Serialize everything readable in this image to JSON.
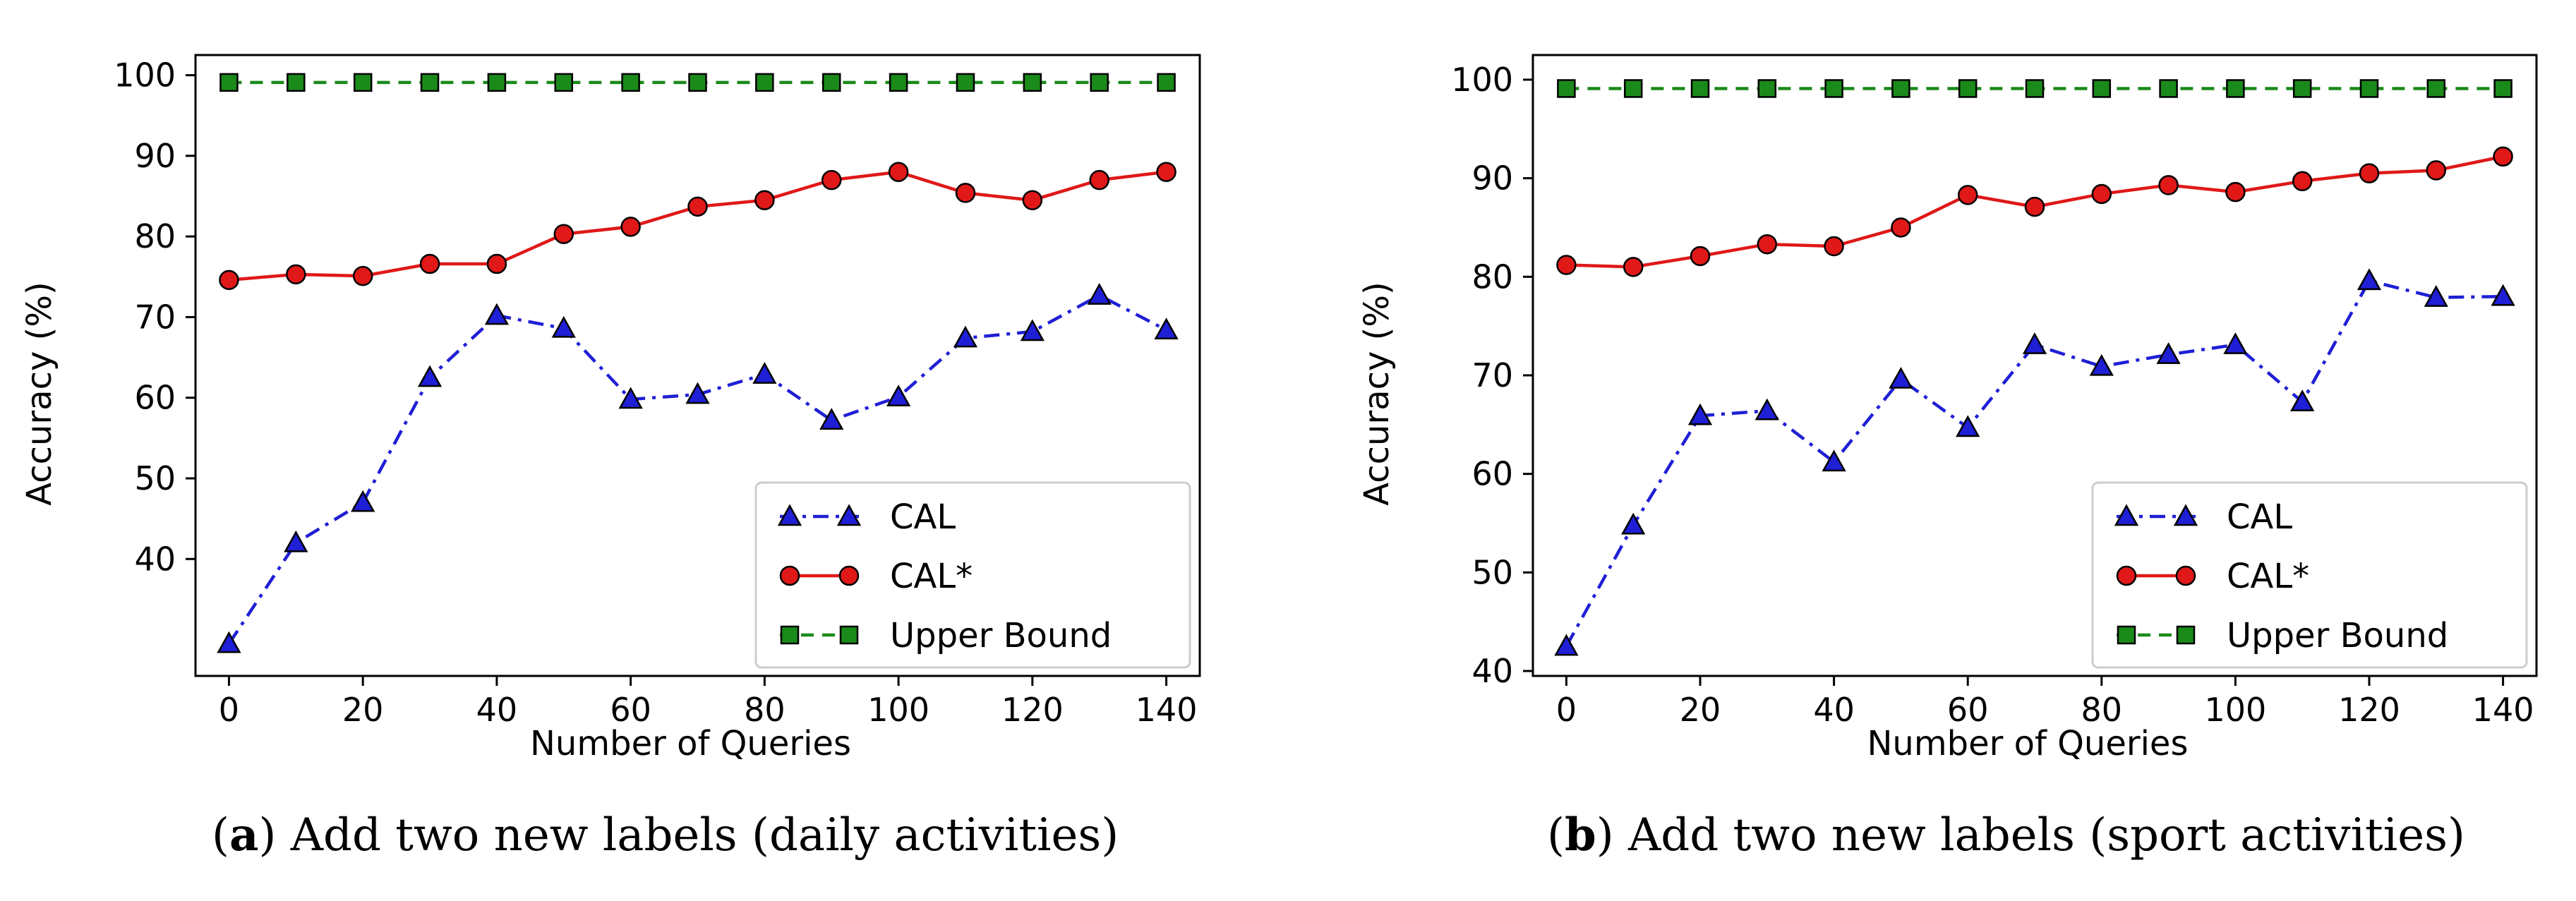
{
  "chart_data": [
    {
      "type": "line",
      "caption_letter": "a",
      "caption_text": "Add two new labels (daily activities)",
      "xlabel": "Number of Queries",
      "ylabel": "Accuracy (%)",
      "xlim": [
        -5,
        145
      ],
      "ylim": [
        25.5,
        102.5
      ],
      "xticks": [
        0,
        20,
        40,
        60,
        80,
        100,
        120,
        140
      ],
      "yticks": [
        40,
        50,
        60,
        70,
        80,
        90,
        100
      ],
      "x": [
        0,
        10,
        20,
        30,
        40,
        50,
        60,
        70,
        80,
        90,
        100,
        110,
        120,
        130,
        140
      ],
      "series": [
        {
          "name": "CAL",
          "color": "#1f1fd6",
          "marker": "triangle",
          "style": "dashdot",
          "values": [
            29.5,
            42,
            47,
            62.5,
            70.2,
            68.6,
            59.8,
            60.4,
            62.9,
            57.2,
            60.1,
            67.4,
            68.2,
            72.7,
            68.4
          ]
        },
        {
          "name": "CAL*",
          "color": "#e01818",
          "marker": "circle",
          "style": "solid",
          "values": [
            74.6,
            75.3,
            75.1,
            76.6,
            76.6,
            80.3,
            81.2,
            83.7,
            84.5,
            87.0,
            88.0,
            85.4,
            84.5,
            87.0,
            88.0
          ]
        },
        {
          "name": "Upper Bound",
          "color": "#1a8a1a",
          "marker": "square",
          "style": "dashed",
          "values": [
            99.1,
            99.1,
            99.1,
            99.1,
            99.1,
            99.1,
            99.1,
            99.1,
            99.1,
            99.1,
            99.1,
            99.1,
            99.1,
            99.1,
            99.1
          ]
        }
      ],
      "legend": "lower right"
    },
    {
      "type": "line",
      "caption_letter": "b",
      "caption_text": "Add two new labels (sport activities)",
      "xlabel": "Number of Queries",
      "ylabel": "Accuracy (%)",
      "xlim": [
        -5,
        145
      ],
      "ylim": [
        39.5,
        102.5
      ],
      "xticks": [
        0,
        20,
        40,
        60,
        80,
        100,
        120,
        140
      ],
      "yticks": [
        40,
        50,
        60,
        70,
        80,
        90,
        100
      ],
      "x": [
        0,
        10,
        20,
        30,
        40,
        50,
        60,
        70,
        80,
        90,
        100,
        110,
        120,
        130,
        140
      ],
      "series": [
        {
          "name": "CAL",
          "color": "#1f1fd6",
          "marker": "triangle",
          "style": "dashdot",
          "values": [
            42.5,
            54.8,
            65.9,
            66.4,
            61.2,
            69.6,
            64.7,
            73.1,
            70.9,
            72.1,
            73.1,
            67.3,
            79.6,
            77.9,
            78.0
          ]
        },
        {
          "name": "CAL*",
          "color": "#e01818",
          "marker": "circle",
          "style": "solid",
          "values": [
            81.2,
            81.0,
            82.1,
            83.3,
            83.1,
            85.0,
            88.3,
            87.1,
            88.4,
            89.3,
            88.6,
            89.7,
            90.5,
            90.8,
            92.2
          ]
        },
        {
          "name": "Upper Bound",
          "color": "#1a8a1a",
          "marker": "square",
          "style": "dashed",
          "values": [
            99.1,
            99.1,
            99.1,
            99.1,
            99.1,
            99.1,
            99.1,
            99.1,
            99.1,
            99.1,
            99.1,
            99.1,
            99.1,
            99.1,
            99.1
          ]
        }
      ],
      "legend": "lower right"
    }
  ]
}
